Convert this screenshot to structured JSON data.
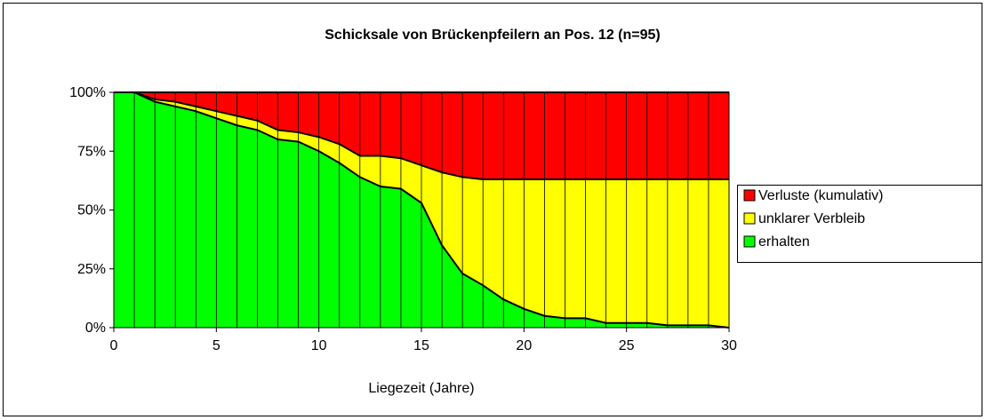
{
  "chart_data": {
    "type": "area",
    "title": "Schicksale von Brückenpfeilern an Pos. 12 (n=95)",
    "x_label": "Liegezeit (Jahre)",
    "x": [
      0,
      1,
      2,
      3,
      4,
      5,
      6,
      7,
      8,
      9,
      10,
      11,
      12,
      13,
      14,
      15,
      16,
      17,
      18,
      19,
      20,
      21,
      22,
      23,
      24,
      25,
      26,
      27,
      28,
      29,
      30
    ],
    "series": [
      {
        "name": "erhalten",
        "color": "#00ff00",
        "values": [
          100,
          100,
          96,
          94,
          92,
          89,
          86,
          84,
          80,
          79,
          75,
          70,
          64,
          60,
          59,
          53,
          35,
          23,
          18,
          12,
          8,
          5,
          4,
          4,
          2,
          2,
          2,
          1,
          1,
          1,
          0
        ]
      },
      {
        "name": "unklarer Verbleib",
        "color": "#ffff00",
        "values": [
          0,
          0,
          1,
          2,
          2,
          3,
          4,
          4,
          4,
          4,
          6,
          8,
          9,
          13,
          13,
          16,
          31,
          41,
          45,
          51,
          55,
          58,
          59,
          59,
          61,
          61,
          61,
          62,
          62,
          62,
          63
        ]
      },
      {
        "name": "Verluste (kumulativ)",
        "color": "#ff0000",
        "values": [
          0,
          0,
          3,
          4,
          6,
          8,
          10,
          12,
          16,
          17,
          19,
          22,
          27,
          27,
          28,
          31,
          34,
          36,
          37,
          37,
          37,
          37,
          37,
          37,
          37,
          37,
          37,
          37,
          37,
          37,
          37
        ]
      }
    ],
    "stacked": true,
    "xlim": [
      0,
      30
    ],
    "xticks": [
      0,
      5,
      10,
      15,
      20,
      25,
      30
    ],
    "ylim": [
      0,
      100
    ],
    "yticks": [
      {
        "value": 0,
        "label": "0%"
      },
      {
        "value": 25,
        "label": "25%"
      },
      {
        "value": 50,
        "label": "50%"
      },
      {
        "value": 75,
        "label": "75%"
      },
      {
        "value": 100,
        "label": "100%"
      }
    ],
    "legend": "right"
  }
}
